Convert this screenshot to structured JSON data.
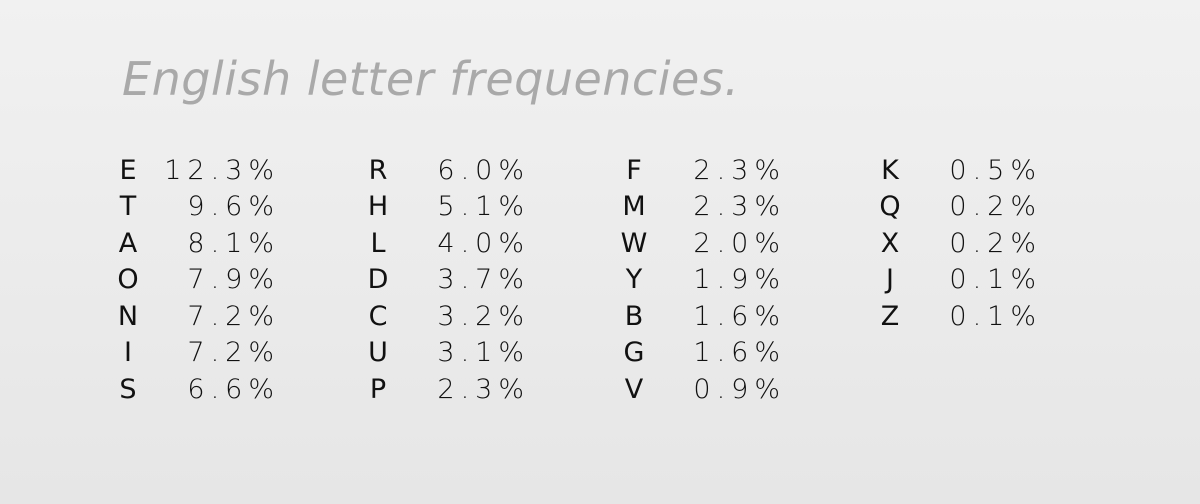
{
  "title": "English letter frequencies.",
  "columns": [
    [
      {
        "letter": "E",
        "pct": "12.3%"
      },
      {
        "letter": "T",
        "pct": "9.6%"
      },
      {
        "letter": "A",
        "pct": "8.1%"
      },
      {
        "letter": "O",
        "pct": "7.9%"
      },
      {
        "letter": "N",
        "pct": "7.2%"
      },
      {
        "letter": "I",
        "pct": "7.2%"
      },
      {
        "letter": "S",
        "pct": "6.6%"
      }
    ],
    [
      {
        "letter": "R",
        "pct": "6.0%"
      },
      {
        "letter": "H",
        "pct": "5.1%"
      },
      {
        "letter": "L",
        "pct": "4.0%"
      },
      {
        "letter": "D",
        "pct": "3.7%"
      },
      {
        "letter": "C",
        "pct": "3.2%"
      },
      {
        "letter": "U",
        "pct": "3.1%"
      },
      {
        "letter": "P",
        "pct": "2.3%"
      }
    ],
    [
      {
        "letter": "F",
        "pct": "2.3%"
      },
      {
        "letter": "M",
        "pct": "2.3%"
      },
      {
        "letter": "W",
        "pct": "2.0%"
      },
      {
        "letter": "Y",
        "pct": "1.9%"
      },
      {
        "letter": "B",
        "pct": "1.6%"
      },
      {
        "letter": "G",
        "pct": "1.6%"
      },
      {
        "letter": "V",
        "pct": "0.9%"
      }
    ],
    [
      {
        "letter": "K",
        "pct": "0.5%"
      },
      {
        "letter": "Q",
        "pct": "0.2%"
      },
      {
        "letter": "X",
        "pct": "0.2%"
      },
      {
        "letter": "J",
        "pct": "0.1%"
      },
      {
        "letter": "Z",
        "pct": "0.1%"
      }
    ]
  ]
}
